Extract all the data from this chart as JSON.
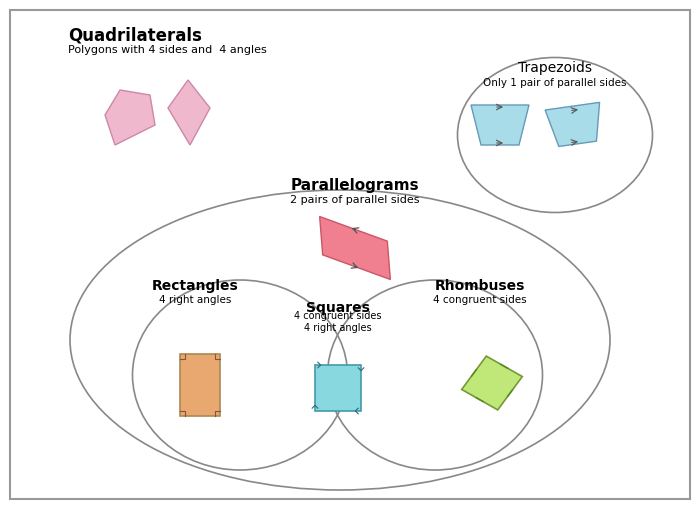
{
  "bg_color": "#ffffff",
  "border_color": "#888888",
  "title_quad": "Quadrilaterals",
  "subtitle_quad": "Polygons with 4 sides and  4 angles",
  "title_trap": "Trapezoids",
  "subtitle_trap": "Only 1 pair of parallel sides",
  "title_para": "Parallelograms",
  "subtitle_para": "2 pairs of parallel sides",
  "title_rect": "Rectangles",
  "subtitle_rect": "4 right angles",
  "title_sq": "Squares",
  "subtitle_sq": "4 congruent sides\n4 right angles",
  "title_rhom": "Rhombuses",
  "subtitle_rhom": "4 congruent sides",
  "colors": {
    "pink_irreg": "#f0b8cc",
    "pink_kite": "#f0b8cc",
    "blue_trap": "#a8dce8",
    "red_para": "#f08090",
    "orange_rect": "#e8a870",
    "cyan_sq": "#88d8e0",
    "green_rhom": "#c0e878"
  }
}
